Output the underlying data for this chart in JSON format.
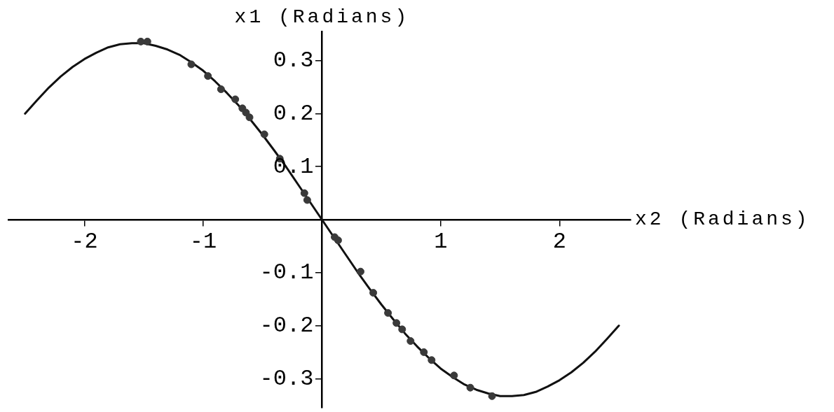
{
  "chart_data": {
    "type": "scatter",
    "xlabel": "x2 (Radians)",
    "ylabel": "x1 (Radians)",
    "xlim": [
      -2.64,
      2.6
    ],
    "ylim": [
      -0.355,
      0.355
    ],
    "xticks": [
      -2,
      -1,
      1,
      2
    ],
    "yticks": [
      -0.3,
      -0.2,
      -0.1,
      0.1,
      0.2,
      0.3
    ],
    "series": [
      {
        "type": "line",
        "marker": "none",
        "color": "#111111",
        "x": [
          -2.5,
          -2.4,
          -2.3,
          -2.2,
          -2.1,
          -2.0,
          -1.9,
          -1.8,
          -1.7,
          -1.6,
          -1.5,
          -1.4,
          -1.3,
          -1.2,
          -1.1,
          -1.0,
          -0.9,
          -0.8,
          -0.7,
          -0.6,
          -0.5,
          -0.4,
          -0.3,
          -0.2,
          -0.1,
          0,
          0.1,
          0.2,
          0.3,
          0.4,
          0.5,
          0.6,
          0.7,
          0.8,
          0.9,
          1.0,
          1.1,
          1.2,
          1.3,
          1.4,
          1.5,
          1.6,
          1.7,
          1.8,
          1.9,
          2.0,
          2.1,
          2.2,
          2.3,
          2.4,
          2.5
        ],
        "values": [
          0.2,
          0.225,
          0.249,
          0.27,
          0.288,
          0.303,
          0.315,
          0.325,
          0.331,
          0.333,
          0.333,
          0.328,
          0.321,
          0.311,
          0.297,
          0.281,
          0.261,
          0.239,
          0.215,
          0.188,
          0.16,
          0.13,
          0.099,
          0.066,
          0.033,
          0,
          -0.033,
          -0.066,
          -0.099,
          -0.13,
          -0.16,
          -0.188,
          -0.215,
          -0.239,
          -0.261,
          -0.281,
          -0.297,
          -0.311,
          -0.321,
          -0.328,
          -0.333,
          -0.333,
          -0.331,
          -0.325,
          -0.315,
          -0.303,
          -0.288,
          -0.27,
          -0.249,
          -0.225,
          -0.2
        ]
      },
      {
        "type": "scatter",
        "marker": "circle",
        "color": "#3a3a3a",
        "x": [
          -1.525,
          -1.47,
          -1.1,
          -0.96,
          -0.85,
          -0.73,
          -0.67,
          -0.64,
          -0.61,
          -0.485,
          -0.355,
          -0.148,
          -0.124,
          0.107,
          0.136,
          0.325,
          0.432,
          0.556,
          0.627,
          0.675,
          0.746,
          0.858,
          0.923,
          1.112,
          1.249,
          1.432
        ],
        "values": [
          0.336,
          0.336,
          0.293,
          0.271,
          0.246,
          0.227,
          0.21,
          0.202,
          0.193,
          0.161,
          0.115,
          0.05,
          0.037,
          -0.033,
          -0.039,
          -0.098,
          -0.138,
          -0.176,
          -0.195,
          -0.207,
          -0.229,
          -0.25,
          -0.265,
          -0.294,
          -0.317,
          -0.333
        ]
      }
    ]
  }
}
